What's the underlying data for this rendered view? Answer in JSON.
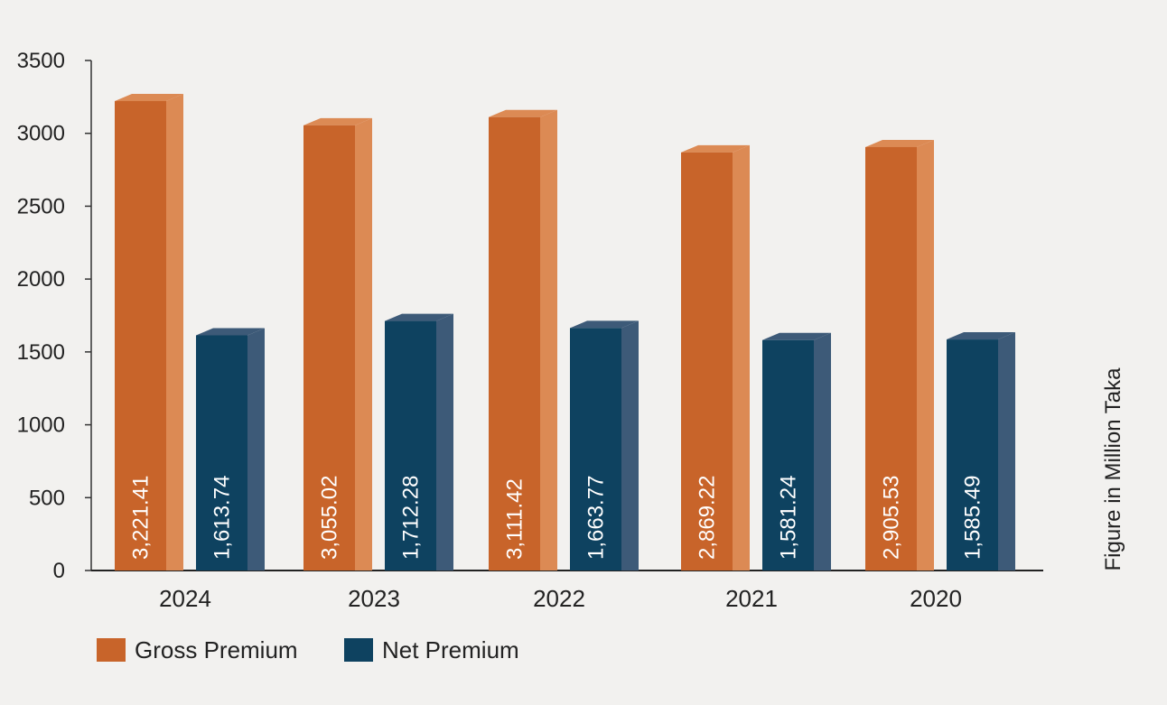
{
  "chart_data": {
    "type": "bar",
    "categories": [
      "2024",
      "2023",
      "2022",
      "2021",
      "2020"
    ],
    "series": [
      {
        "name": "Gross Premium",
        "values": [
          3221.41,
          3055.02,
          3111.42,
          2869.22,
          2905.53
        ],
        "labels": [
          "3,221.41",
          "3,055.02",
          "3,111.42",
          "2,869.22",
          "2,905.53"
        ],
        "color": "#c8642a",
        "side_color": "#dc8a54"
      },
      {
        "name": "Net Premium",
        "values": [
          1613.74,
          1712.28,
          1663.77,
          1581.24,
          1585.49
        ],
        "labels": [
          "1,613.74",
          "1,712.28",
          "1,663.77",
          "1,581.24",
          "1,585.49"
        ],
        "color": "#0e4260",
        "side_color": "#3d5a78"
      }
    ],
    "ylim": [
      0,
      3500
    ],
    "yticks": [
      0,
      500,
      1000,
      1500,
      2000,
      2500,
      3000,
      3500
    ],
    "ylabel": "Figure in Million Taka",
    "legend_position": "bottom-left",
    "grid": false
  }
}
